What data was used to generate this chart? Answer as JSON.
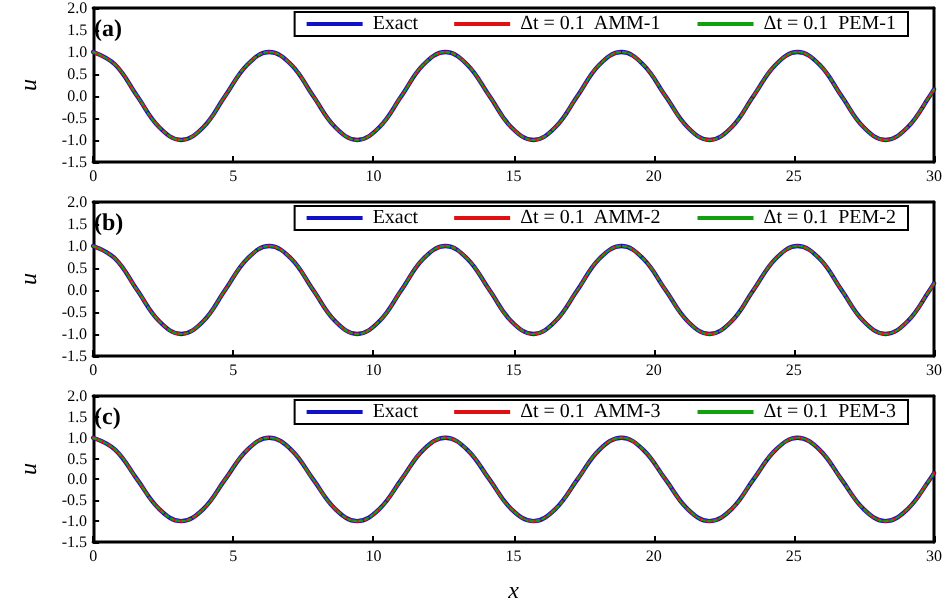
{
  "chart_data": [
    {
      "type": "line",
      "title": "(a)",
      "ylabel": "u",
      "legend": "top right",
      "xlim": [
        0,
        30
      ],
      "ylim": [
        -1.5,
        2
      ],
      "xticks": [
        0,
        5,
        10,
        15,
        20,
        25,
        30
      ],
      "yticks": [
        {
          "value": -1.5,
          "label": "-1.5"
        },
        {
          "value": -1,
          "label": "-1.0"
        },
        {
          "value": -0.5,
          "label": "-0.5"
        },
        {
          "value": 0,
          "label": "0.0"
        },
        {
          "value": 0.5,
          "label": "0.5"
        },
        {
          "value": 1,
          "label": "1.0"
        },
        {
          "value": 1.5,
          "label": "1.5"
        },
        {
          "value": 2,
          "label": "2.0"
        }
      ],
      "x": [
        0,
        0.79,
        1.57,
        2.36,
        3.14,
        3.93,
        4.71,
        5.5,
        6.28,
        7.07,
        7.85,
        8.64,
        9.42,
        10.21,
        11,
        11.78,
        12.57,
        13.35,
        14.14,
        14.92,
        15.71,
        16.49,
        17.28,
        18.06,
        18.85,
        19.63,
        20.42,
        21.21,
        21.99,
        22.78,
        23.56,
        24.35,
        25.13,
        25.92,
        26.7,
        27.49,
        28.27,
        29.06,
        29.85,
        30
      ],
      "series": [
        {
          "name": "Exact",
          "color": "#1010c8",
          "line_style": "solid",
          "values": [
            1,
            0.71,
            0,
            -0.71,
            -1,
            -0.71,
            0,
            0.71,
            1,
            0.71,
            0,
            -0.71,
            -1,
            -0.71,
            0,
            0.71,
            1,
            0.71,
            0,
            -0.71,
            -1,
            -0.71,
            0,
            0.71,
            1,
            0.71,
            0,
            -0.71,
            -1,
            -0.71,
            0,
            0.71,
            1,
            0.71,
            0,
            -0.71,
            -1,
            -0.71,
            0,
            0.15
          ]
        },
        {
          "name": "Δt = 0.1  AMM-1",
          "color": "#e01010",
          "line_style": "dashed",
          "values": [
            1,
            0.71,
            0,
            -0.71,
            -1,
            -0.71,
            0,
            0.71,
            1,
            0.71,
            0,
            -0.71,
            -1,
            -0.71,
            0,
            0.71,
            1,
            0.71,
            0,
            -0.71,
            -1,
            -0.71,
            0,
            0.71,
            1,
            0.71,
            0,
            -0.71,
            -1,
            -0.71,
            0,
            0.71,
            1,
            0.71,
            0,
            -0.71,
            -1,
            -0.71,
            0,
            0.15
          ]
        },
        {
          "name": "Δt = 0.1  PEM-1",
          "color": "#10a010",
          "line_style": "dotted",
          "values": [
            1,
            0.71,
            0,
            -0.71,
            -1,
            -0.71,
            0,
            0.71,
            1,
            0.71,
            0,
            -0.71,
            -1,
            -0.71,
            0,
            0.71,
            1,
            0.71,
            0,
            -0.71,
            -1,
            -0.71,
            0,
            0.71,
            1,
            0.71,
            0,
            -0.71,
            -1,
            -0.71,
            0,
            0.71,
            1,
            0.71,
            0,
            -0.71,
            -1,
            -0.71,
            0,
            0.15
          ]
        }
      ]
    },
    {
      "type": "line",
      "title": "(b)",
      "ylabel": "u",
      "legend": "top right",
      "xlim": [
        0,
        30
      ],
      "ylim": [
        -1.5,
        2
      ],
      "xticks": [
        0,
        5,
        10,
        15,
        20,
        25,
        30
      ],
      "yticks": [
        {
          "value": -1.5,
          "label": "-1.5"
        },
        {
          "value": -1,
          "label": "-1.0"
        },
        {
          "value": -0.5,
          "label": "-0.5"
        },
        {
          "value": 0,
          "label": "0.0"
        },
        {
          "value": 0.5,
          "label": "0.5"
        },
        {
          "value": 1,
          "label": "1.0"
        },
        {
          "value": 1.5,
          "label": "1.5"
        },
        {
          "value": 2,
          "label": "2.0"
        }
      ],
      "x": [
        0,
        0.79,
        1.57,
        2.36,
        3.14,
        3.93,
        4.71,
        5.5,
        6.28,
        7.07,
        7.85,
        8.64,
        9.42,
        10.21,
        11,
        11.78,
        12.57,
        13.35,
        14.14,
        14.92,
        15.71,
        16.49,
        17.28,
        18.06,
        18.85,
        19.63,
        20.42,
        21.21,
        21.99,
        22.78,
        23.56,
        24.35,
        25.13,
        25.92,
        26.7,
        27.49,
        28.27,
        29.06,
        29.85,
        30
      ],
      "series": [
        {
          "name": "Exact",
          "color": "#1010c8",
          "line_style": "solid",
          "values": [
            1,
            0.71,
            0,
            -0.71,
            -1,
            -0.71,
            0,
            0.71,
            1,
            0.71,
            0,
            -0.71,
            -1,
            -0.71,
            0,
            0.71,
            1,
            0.71,
            0,
            -0.71,
            -1,
            -0.71,
            0,
            0.71,
            1,
            0.71,
            0,
            -0.71,
            -1,
            -0.71,
            0,
            0.71,
            1,
            0.71,
            0,
            -0.71,
            -1,
            -0.71,
            0,
            0.15
          ]
        },
        {
          "name": "Δt = 0.1  AMM-2",
          "color": "#e01010",
          "line_style": "dashed",
          "values": [
            1,
            0.71,
            0,
            -0.71,
            -1,
            -0.71,
            0,
            0.71,
            1,
            0.71,
            0,
            -0.71,
            -1,
            -0.71,
            0,
            0.71,
            1,
            0.71,
            0,
            -0.71,
            -1,
            -0.71,
            0,
            0.71,
            1,
            0.71,
            0,
            -0.71,
            -1,
            -0.71,
            0,
            0.71,
            1,
            0.71,
            0,
            -0.71,
            -1,
            -0.71,
            0,
            0.15
          ]
        },
        {
          "name": "Δt = 0.1  PEM-2",
          "color": "#10a010",
          "line_style": "dotted",
          "values": [
            1,
            0.71,
            0,
            -0.71,
            -1,
            -0.71,
            0,
            0.71,
            1,
            0.71,
            0,
            -0.71,
            -1,
            -0.71,
            0,
            0.71,
            1,
            0.71,
            0,
            -0.71,
            -1,
            -0.71,
            0,
            0.71,
            1,
            0.71,
            0,
            -0.71,
            -1,
            -0.71,
            0,
            0.71,
            1,
            0.71,
            0,
            -0.71,
            -1,
            -0.71,
            0,
            0.15
          ]
        }
      ]
    },
    {
      "type": "line",
      "title": "(c)",
      "ylabel": "u",
      "xlabel": "x",
      "legend": "top right",
      "xlim": [
        0,
        30
      ],
      "ylim": [
        -1.5,
        2
      ],
      "xticks": [
        0,
        5,
        10,
        15,
        20,
        25,
        30
      ],
      "yticks": [
        {
          "value": -1.5,
          "label": "-1.5"
        },
        {
          "value": -1,
          "label": "-1.0"
        },
        {
          "value": -0.5,
          "label": "-0.5"
        },
        {
          "value": 0,
          "label": "0.0"
        },
        {
          "value": 0.5,
          "label": "0.5"
        },
        {
          "value": 1,
          "label": "1.0"
        },
        {
          "value": 1.5,
          "label": "1.5"
        },
        {
          "value": 2,
          "label": "2.0"
        }
      ],
      "x": [
        0,
        0.79,
        1.57,
        2.36,
        3.14,
        3.93,
        4.71,
        5.5,
        6.28,
        7.07,
        7.85,
        8.64,
        9.42,
        10.21,
        11,
        11.78,
        12.57,
        13.35,
        14.14,
        14.92,
        15.71,
        16.49,
        17.28,
        18.06,
        18.85,
        19.63,
        20.42,
        21.21,
        21.99,
        22.78,
        23.56,
        24.35,
        25.13,
        25.92,
        26.7,
        27.49,
        28.27,
        29.06,
        29.85,
        30
      ],
      "series": [
        {
          "name": "Exact",
          "color": "#1010c8",
          "line_style": "solid",
          "values": [
            1,
            0.71,
            0,
            -0.71,
            -1,
            -0.71,
            0,
            0.71,
            1,
            0.71,
            0,
            -0.71,
            -1,
            -0.71,
            0,
            0.71,
            1,
            0.71,
            0,
            -0.71,
            -1,
            -0.71,
            0,
            0.71,
            1,
            0.71,
            0,
            -0.71,
            -1,
            -0.71,
            0,
            0.71,
            1,
            0.71,
            0,
            -0.71,
            -1,
            -0.71,
            0,
            0.15
          ]
        },
        {
          "name": "Δt = 0.1  AMM-3",
          "color": "#e01010",
          "line_style": "dashed",
          "values": [
            1,
            0.71,
            0,
            -0.71,
            -1,
            -0.71,
            0,
            0.71,
            1,
            0.71,
            0,
            -0.71,
            -1,
            -0.71,
            0,
            0.71,
            1,
            0.71,
            0,
            -0.71,
            -1,
            -0.71,
            0,
            0.71,
            1,
            0.71,
            0,
            -0.71,
            -1,
            -0.71,
            0,
            0.71,
            1,
            0.71,
            0,
            -0.71,
            -1,
            -0.71,
            0,
            0.15
          ]
        },
        {
          "name": "Δt = 0.1  PEM-3",
          "color": "#10a010",
          "line_style": "dotted",
          "values": [
            1,
            0.71,
            0,
            -0.71,
            -1,
            -0.71,
            0,
            0.71,
            1,
            0.71,
            0,
            -0.71,
            -1,
            -0.71,
            0,
            0.71,
            1,
            0.71,
            0,
            -0.71,
            -1,
            -0.71,
            0,
            0.71,
            1,
            0.71,
            0,
            -0.71,
            -1,
            -0.71,
            0,
            0.71,
            1,
            0.71,
            0,
            -0.71,
            -1,
            -0.71,
            0,
            0.15
          ]
        }
      ]
    }
  ]
}
